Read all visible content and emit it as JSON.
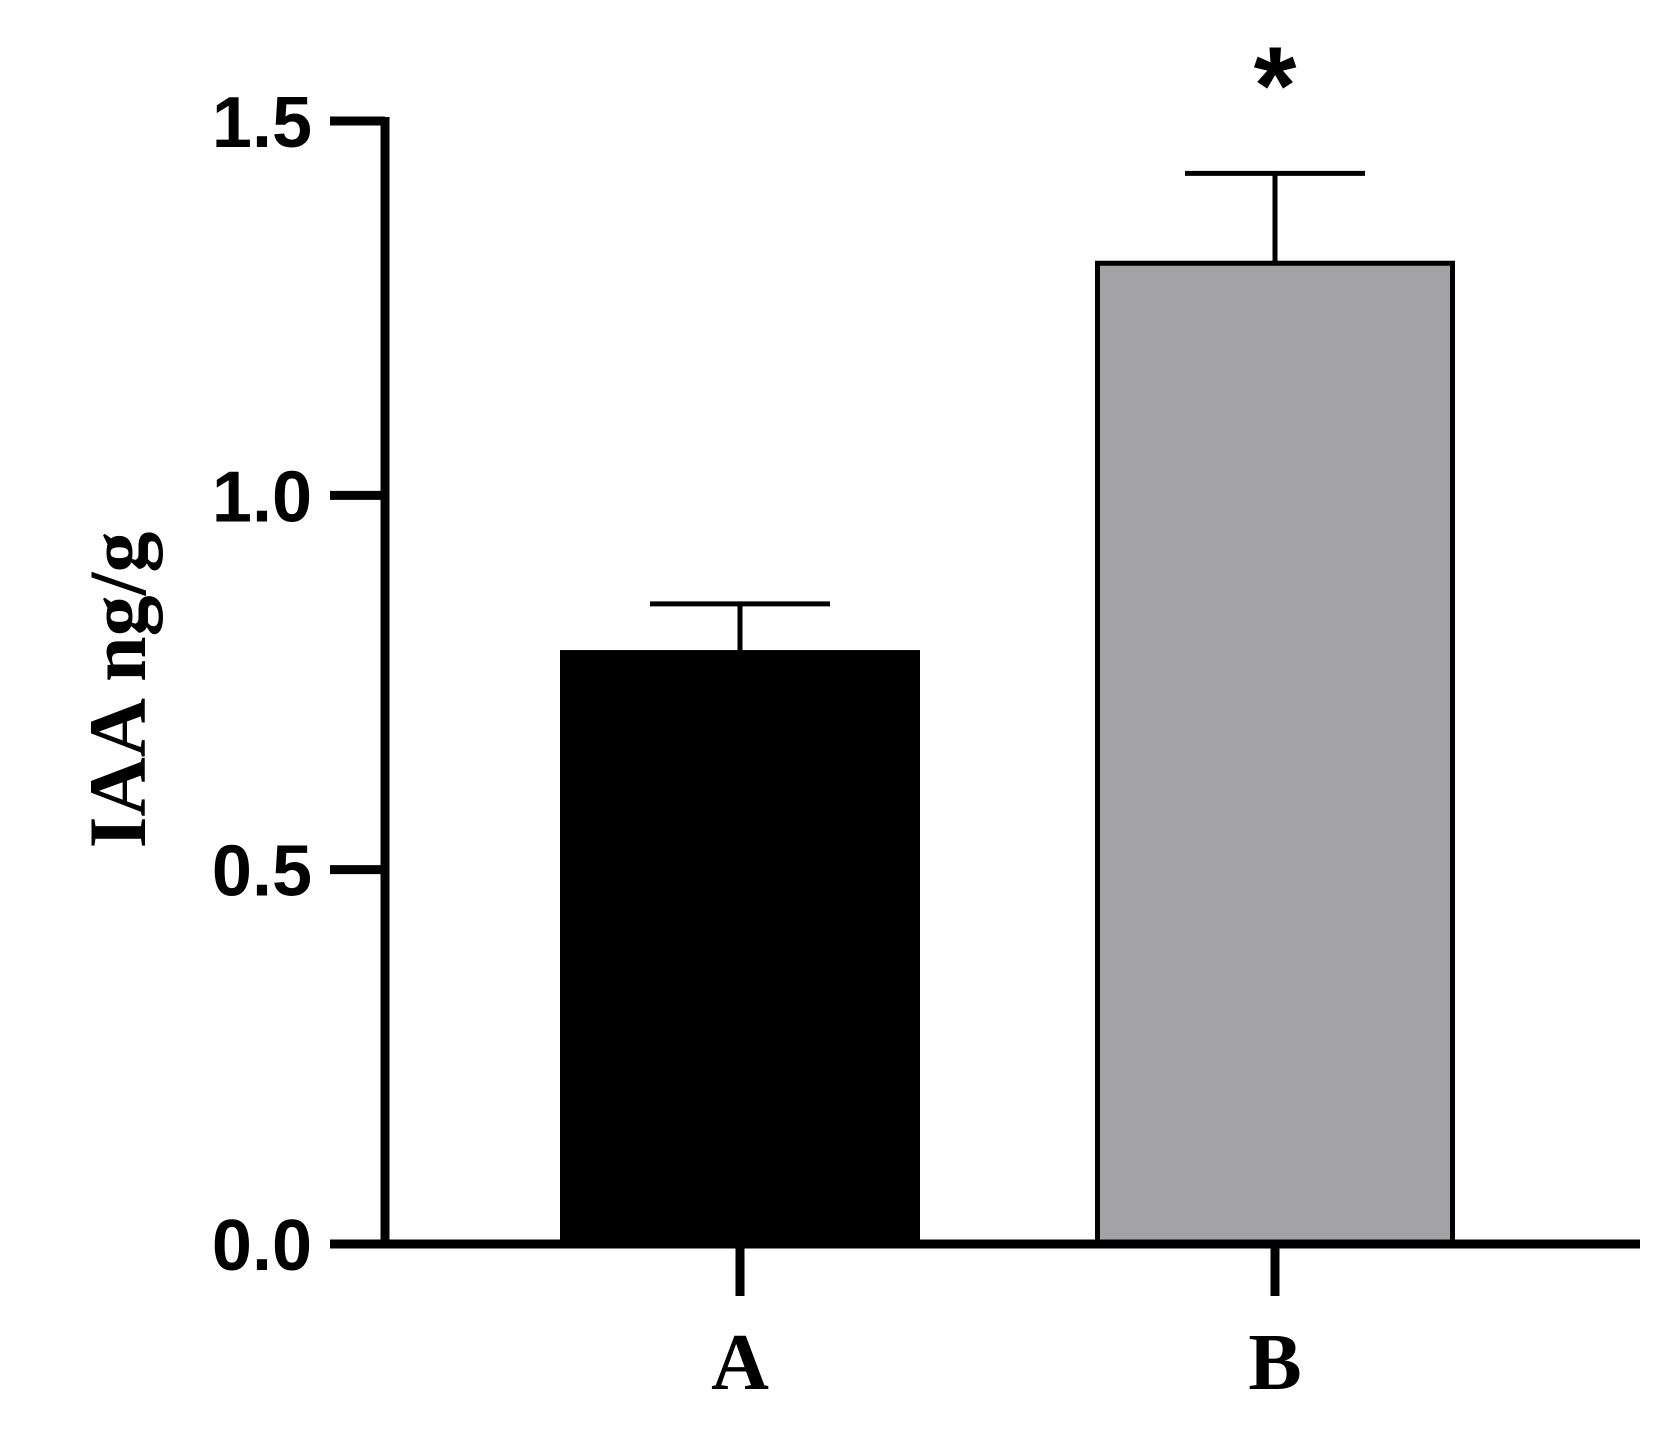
{
  "chart_data": {
    "type": "bar",
    "categories": [
      "A",
      "B"
    ],
    "values": [
      0.79,
      1.31
    ],
    "error": [
      0.065,
      0.12
    ],
    "colors": [
      "#000000",
      "#a3a2a7"
    ],
    "ylabel": "IAA ng/g",
    "xlabel": "",
    "ylim": [
      0,
      1.5
    ],
    "yticks": [
      "0.0",
      "0.5",
      "1.0",
      "1.5"
    ],
    "annotations": [
      "",
      "*"
    ],
    "grid": false
  }
}
